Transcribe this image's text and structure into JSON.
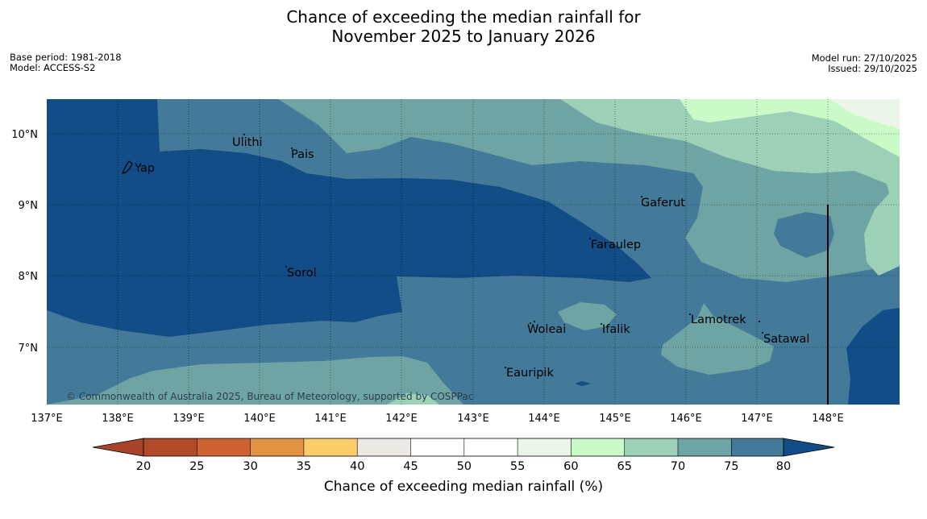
{
  "header": {
    "title_line1": "Chance of exceeding the median rainfall for",
    "title_line2": "November 2025 to January 2026",
    "base_period": "Base period: 1981-2018",
    "model": "Model: ACCESS-S2",
    "model_run": "Model run: 27/10/2025",
    "issued": "Issued: 29/10/2025"
  },
  "map": {
    "lat_labels": [
      "10°N",
      "9°N",
      "8°N",
      "7°N"
    ],
    "lon_labels": [
      "137°E",
      "138°E",
      "139°E",
      "140°E",
      "141°E",
      "142°E",
      "143°E",
      "144°E",
      "145°E",
      "146°E",
      "147°E",
      "148°E"
    ],
    "places": [
      "Yap",
      "Ulithi",
      "Pais",
      "Gaferut",
      "Faraulep",
      "Sorol",
      "Woleai",
      "Ifalik",
      "Lamotrek",
      "Satawal",
      "Eauripik"
    ],
    "copyright": "© Commonwealth of Australia 2025, Bureau of Meteorology, supported by COSPPac",
    "colors": {
      "c75_80": "#134d87",
      "c70_75": "#437a99",
      "c65_70": "#6fa4a5",
      "c60_65": "#9dd1b7",
      "c55_60": "#c9fac8",
      "c50_55": "#ebf5ea"
    }
  },
  "colorbar": {
    "ticks": [
      "20",
      "25",
      "30",
      "35",
      "40",
      "45",
      "50",
      "55",
      "60",
      "65",
      "70",
      "75",
      "80"
    ],
    "colors": [
      "#a8432a",
      "#b04a27",
      "#ce6332",
      "#e39244",
      "#fdcc6a",
      "#ece9e4",
      "#ffffff",
      "#ffffff",
      "#ebf5ea",
      "#c9fac8",
      "#9dd1b7",
      "#6fa4a5",
      "#437a99",
      "#134d87"
    ],
    "label": "Chance of exceeding median rainfall (%)"
  }
}
